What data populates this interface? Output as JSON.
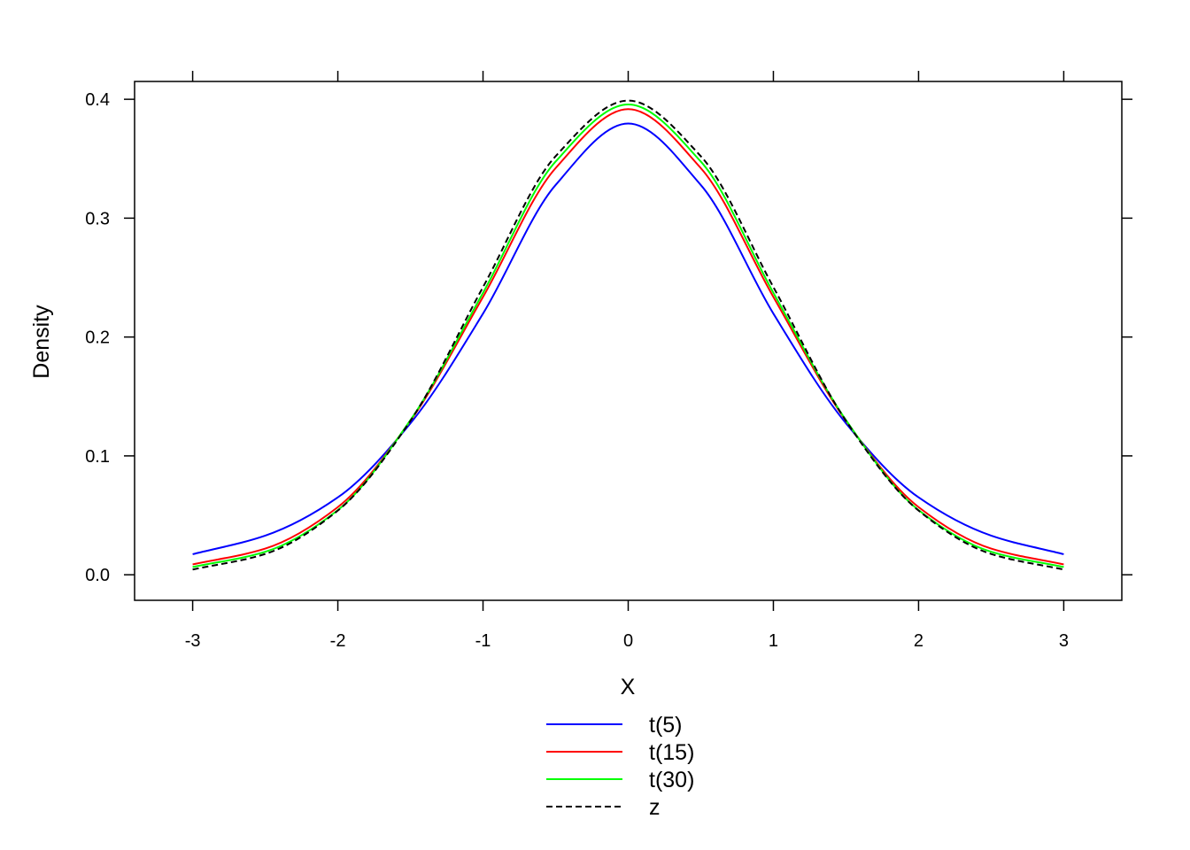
{
  "chart_data": {
    "type": "line",
    "title": "",
    "xlabel": "X",
    "ylabel": "Density",
    "xlim": [
      -3.4,
      3.4
    ],
    "ylim": [
      -0.0215,
      0.415
    ],
    "xticks": [
      -3,
      -2,
      -1,
      0,
      1,
      2,
      3
    ],
    "xtick_labels": [
      "-3",
      "-2",
      "-1",
      "0",
      "1",
      "2",
      "3"
    ],
    "yticks": [
      0.0,
      0.1,
      0.2,
      0.3,
      0.4
    ],
    "ytick_labels": [
      "0.0",
      "0.1",
      "0.2",
      "0.3",
      "0.4"
    ],
    "grid": false,
    "legend_position": "bottom",
    "x": [
      -3.0,
      -2.5,
      -2.0,
      -1.5,
      -1.0,
      -0.5,
      0.0,
      0.5,
      1.0,
      1.5,
      2.0,
      2.5,
      3.0
    ],
    "series": [
      {
        "name": "t(5)",
        "color": "#0000ff",
        "dash": "solid",
        "values": [
          0.0173,
          0.0329,
          0.0651,
          0.1274,
          0.2197,
          0.3279,
          0.3796,
          0.3279,
          0.2197,
          0.1274,
          0.0651,
          0.0329,
          0.0173
        ]
      },
      {
        "name": "t(15)",
        "color": "#ff0000",
        "dash": "solid",
        "values": [
          0.0087,
          0.022,
          0.0569,
          0.1296,
          0.2337,
          0.3421,
          0.3917,
          0.3421,
          0.2337,
          0.1296,
          0.0569,
          0.022,
          0.0087
        ]
      },
      {
        "name": "t(30)",
        "color": "#00ff00",
        "dash": "solid",
        "values": [
          0.0065,
          0.0193,
          0.0544,
          0.1301,
          0.2372,
          0.3476,
          0.3956,
          0.3476,
          0.2372,
          0.1301,
          0.0544,
          0.0193,
          0.0065
        ]
      },
      {
        "name": "z",
        "color": "#000000",
        "dash": "dashed",
        "values": [
          0.0044,
          0.0175,
          0.054,
          0.1295,
          0.242,
          0.3521,
          0.3989,
          0.3521,
          0.242,
          0.1295,
          0.054,
          0.0175,
          0.0044
        ]
      }
    ]
  }
}
